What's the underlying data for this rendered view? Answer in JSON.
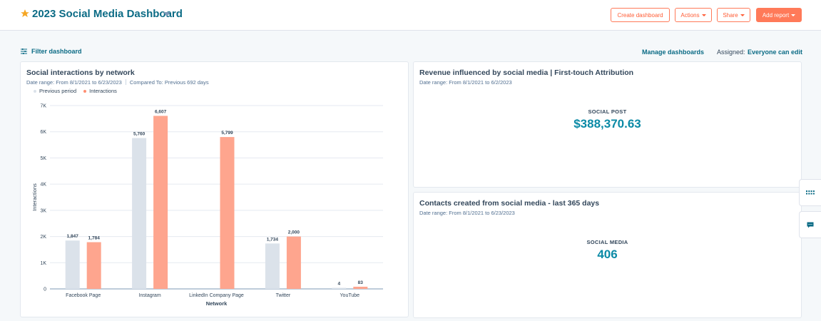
{
  "header": {
    "title": "2023 Social Media Dashboard",
    "buttons": {
      "create_dashboard": "Create dashboard",
      "actions": "Actions",
      "share": "Share",
      "add_report": "Add report"
    }
  },
  "toolbar": {
    "filter_label": "Filter dashboard",
    "manage_label": "Manage dashboards",
    "assigned_label": "Assigned:",
    "assigned_value": "Everyone can edit"
  },
  "colors": {
    "brand_teal": "#0b6b85",
    "accent_orange": "#ff7a59",
    "previous_bar": "#dbe2ea",
    "current_bar": "#fea58e",
    "kpi_value": "#0b8aa6"
  },
  "cards": {
    "interactions": {
      "title": "Social interactions by network",
      "date_range": "Date range: From 8/1/2021 to 6/23/2023",
      "compared_to": "Compared To: Previous 692 days"
    },
    "revenue": {
      "title": "Revenue influenced by social media | First-touch Attribution",
      "date_range": "Date range: From 8/1/2021 to 6/2/2023",
      "kpi_label": "SOCIAL POST",
      "kpi_value": "$388,370.63"
    },
    "contacts": {
      "title": "Contacts created from social media - last 365 days",
      "date_range": "Date range: From 8/1/2021 to 6/23/2023",
      "kpi_label": "SOCIAL MEDIA",
      "kpi_value": "406"
    }
  },
  "chart_data": {
    "type": "bar",
    "categories": [
      "Facebook Page",
      "Instagram",
      "LinkedIn Company Page",
      "Twitter",
      "YouTube"
    ],
    "series": [
      {
        "name": "Previous period",
        "values": [
          1847,
          5760,
          null,
          1734,
          4
        ],
        "labels": [
          "1,847",
          "5,760",
          "",
          "1,734",
          "4"
        ]
      },
      {
        "name": "Interactions",
        "values": [
          1784,
          6607,
          5799,
          2000,
          83
        ],
        "labels": [
          "1,784",
          "6,607",
          "5,799",
          "2,000",
          "83"
        ]
      }
    ],
    "xlabel": "Network",
    "ylabel": "Interactions",
    "ylim": [
      0,
      7000
    ],
    "yticks": [
      "0",
      "1K",
      "2K",
      "3K",
      "4K",
      "5K",
      "6K",
      "7K"
    ],
    "grid": true,
    "legend": "top-left"
  },
  "icons": {
    "title_star": "star-icon",
    "filter": "filter-icon",
    "side_grid": "grid-icon",
    "side_chat": "chat-icon"
  }
}
